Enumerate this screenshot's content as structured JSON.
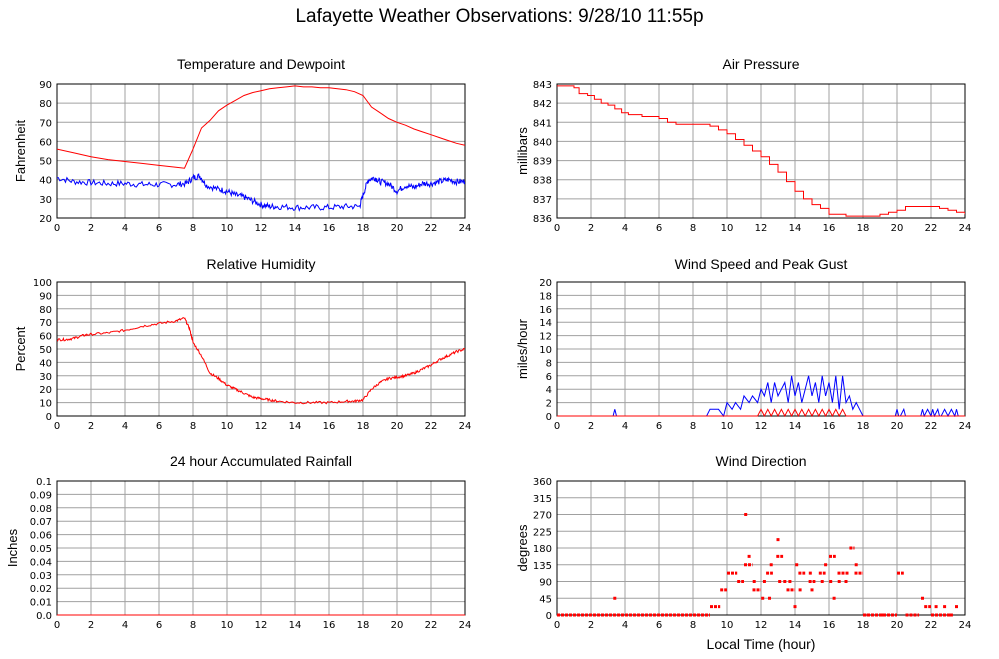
{
  "title": "Lafayette Weather Observations: 9/28/10 11:55p",
  "xlabel_bottom": "Local Time (hour)",
  "colors": {
    "series_red": "#ff0000",
    "series_blue": "#0000ff",
    "grid": "#a0a0a0"
  },
  "chart_data": [
    {
      "id": "temp",
      "type": "line",
      "title": "Temperature and Dewpoint",
      "ylabel": "Fahrenheit",
      "xlim": [
        0,
        24
      ],
      "ylim": [
        20,
        90
      ],
      "xticks": [
        0,
        2,
        4,
        6,
        8,
        10,
        12,
        14,
        16,
        18,
        20,
        22,
        24
      ],
      "yticks": [
        20,
        30,
        40,
        50,
        60,
        70,
        80,
        90
      ],
      "ytick_labels": [
        "20",
        "30",
        "40",
        "50",
        "60",
        "70",
        "80",
        "90"
      ],
      "series": [
        {
          "color": "#ff0000",
          "step": false,
          "x": [
            0,
            1,
            2,
            3,
            4,
            5,
            6,
            7,
            7.5,
            7.8,
            8,
            8.5,
            9,
            9.5,
            10,
            10.5,
            11,
            11.5,
            12,
            12.5,
            13,
            13.5,
            14,
            14.5,
            15,
            15.5,
            16,
            16.5,
            17,
            17.5,
            18,
            18.5,
            19,
            19.5,
            20,
            20.5,
            21,
            21.5,
            22,
            22.5,
            23,
            23.5,
            24
          ],
          "y": [
            56,
            54,
            52,
            50.5,
            49.5,
            48.5,
            47.5,
            46.5,
            46,
            52,
            56,
            67,
            71,
            76,
            79,
            81.5,
            84,
            85.5,
            86.5,
            87.5,
            88,
            88.5,
            89,
            88.5,
            88.5,
            88,
            88,
            87.5,
            87,
            86,
            84,
            78,
            75,
            72,
            70,
            68.5,
            66.5,
            65,
            63.5,
            62,
            60.5,
            59,
            58
          ],
          "noise": 0
        },
        {
          "color": "#0000ff",
          "step": false,
          "x": [
            0,
            1,
            2,
            3,
            4,
            5,
            6,
            7,
            7.6,
            8,
            8.4,
            8.8,
            9.5,
            10,
            10.5,
            11,
            11.5,
            12,
            12.5,
            13,
            14,
            15,
            16,
            17,
            17.8,
            18,
            18.3,
            18.7,
            19,
            19.5,
            20,
            20.5,
            21,
            21.5,
            22,
            22.5,
            23,
            23.5,
            24
          ],
          "y": [
            41,
            39,
            38.5,
            38,
            38,
            37.5,
            37.5,
            37.5,
            38,
            41,
            42,
            37,
            35,
            34,
            32,
            31,
            29,
            27,
            26,
            26,
            25.5,
            25.5,
            25.5,
            26,
            26,
            32,
            40,
            41,
            39,
            38,
            34,
            37,
            36,
            38,
            38,
            39,
            40,
            39,
            39
          ],
          "noise": 1.6
        }
      ]
    },
    {
      "id": "pressure",
      "type": "line",
      "title": "Air Pressure",
      "ylabel": "millibars",
      "xlim": [
        0,
        24
      ],
      "ylim": [
        836,
        843
      ],
      "xticks": [
        0,
        2,
        4,
        6,
        8,
        10,
        12,
        14,
        16,
        18,
        20,
        22,
        24
      ],
      "yticks": [
        836,
        837,
        838,
        839,
        840,
        841,
        842,
        843
      ],
      "ytick_labels": [
        "836",
        "837",
        "838",
        "839",
        "840",
        "841",
        "842",
        "843"
      ],
      "series": [
        {
          "color": "#ff0000",
          "step": true,
          "x": [
            0,
            0.5,
            1,
            1.3,
            1.8,
            2.2,
            2.6,
            3,
            3.4,
            3.8,
            4.2,
            5,
            6,
            6.5,
            7,
            8,
            9,
            9.5,
            10,
            10.5,
            11,
            11.5,
            12,
            12.5,
            13,
            13.5,
            14,
            14.5,
            15,
            15.5,
            16,
            17,
            18,
            18.5,
            19,
            19.5,
            20,
            20.5,
            21,
            22,
            22.5,
            23,
            23.5,
            24
          ],
          "y": [
            842.9,
            842.9,
            842.8,
            842.5,
            842.4,
            842.2,
            842.0,
            841.9,
            841.7,
            841.5,
            841.4,
            841.3,
            841.2,
            841.0,
            840.9,
            840.9,
            840.8,
            840.6,
            840.4,
            840.1,
            839.8,
            839.5,
            839.2,
            838.8,
            838.4,
            837.9,
            837.4,
            837.0,
            836.7,
            836.5,
            836.2,
            836.1,
            836.1,
            836.1,
            836.2,
            836.3,
            836.4,
            836.6,
            836.6,
            836.6,
            836.5,
            836.4,
            836.3,
            836.2
          ],
          "noise": 0
        }
      ]
    },
    {
      "id": "humidity",
      "type": "line",
      "title": "Relative Humidity",
      "ylabel": "Percent",
      "xlim": [
        0,
        24
      ],
      "ylim": [
        0,
        100
      ],
      "xticks": [
        0,
        2,
        4,
        6,
        8,
        10,
        12,
        14,
        16,
        18,
        20,
        22,
        24
      ],
      "yticks": [
        0,
        10,
        20,
        30,
        40,
        50,
        60,
        70,
        80,
        90,
        100
      ],
      "ytick_labels": [
        "0",
        "10",
        "20",
        "30",
        "40",
        "50",
        "60",
        "70",
        "80",
        "90",
        "100"
      ],
      "series": [
        {
          "color": "#ff0000",
          "step": false,
          "x": [
            0,
            0.5,
            1,
            1.5,
            2,
            3,
            4,
            5,
            6,
            7,
            7.5,
            7.8,
            8,
            8.5,
            9,
            9.5,
            10,
            10.5,
            11,
            11.5,
            12,
            12.5,
            13,
            14,
            15,
            16,
            17,
            17.5,
            18,
            18.5,
            19,
            19.5,
            20,
            20.5,
            21,
            21.5,
            22,
            22.5,
            23,
            23.5,
            24
          ],
          "y": [
            57,
            57,
            58,
            60,
            61,
            62,
            64,
            67,
            69,
            71,
            73,
            65,
            55,
            45,
            32,
            28,
            23,
            20,
            17,
            14,
            13,
            12,
            11,
            10,
            10,
            10,
            11,
            11,
            12,
            20,
            25,
            28,
            29,
            30,
            32,
            35,
            38,
            42,
            45,
            48,
            50
          ],
          "noise": 0.9
        }
      ]
    },
    {
      "id": "wind",
      "type": "line",
      "title": "Wind Speed and Peak Gust",
      "ylabel": "miles/hour",
      "xlim": [
        0,
        24
      ],
      "ylim": [
        0,
        20
      ],
      "xticks": [
        0,
        2,
        4,
        6,
        8,
        10,
        12,
        14,
        16,
        18,
        20,
        22,
        24
      ],
      "yticks": [
        0,
        2,
        4,
        6,
        8,
        10,
        12,
        14,
        16,
        18,
        20
      ],
      "ytick_labels": [
        "0",
        "2",
        "4",
        "6",
        "8",
        "10",
        "12",
        "14",
        "16",
        "18",
        "20"
      ],
      "series": [
        {
          "color": "#0000ff",
          "step": false,
          "x": [
            0,
            3.3,
            3.4,
            3.5,
            3.6,
            8.8,
            9,
            9.2,
            9.5,
            9.8,
            10,
            10.3,
            10.5,
            10.8,
            11,
            11.3,
            11.5,
            11.8,
            12,
            12.2,
            12.4,
            12.6,
            12.8,
            13,
            13.2,
            13.4,
            13.6,
            13.8,
            14,
            14.2,
            14.4,
            14.6,
            14.8,
            15,
            15.2,
            15.4,
            15.6,
            15.8,
            16,
            16.2,
            16.4,
            16.6,
            16.8,
            17,
            17.2,
            17.4,
            17.6,
            17.8,
            18,
            19.9,
            20,
            20.1,
            20.2,
            20.4,
            20.5,
            20.6,
            21.4,
            21.5,
            21.6,
            21.8,
            22,
            22.1,
            22.2,
            22.4,
            22.5,
            22.6,
            22.8,
            23,
            23.2,
            23.4,
            23.5,
            23.6,
            24
          ],
          "y": [
            0,
            0,
            1,
            0,
            0,
            0,
            1,
            1,
            1,
            0,
            2,
            1,
            2,
            1,
            3,
            2,
            3,
            2,
            4,
            3,
            5,
            2,
            5,
            3,
            4,
            5,
            2,
            6,
            3,
            5,
            2,
            4,
            6,
            3,
            5,
            2,
            6,
            3,
            5,
            2,
            6,
            1,
            6,
            2,
            3,
            1,
            2,
            1,
            0,
            0,
            1,
            0,
            0,
            1,
            0,
            0,
            0,
            1,
            0,
            1,
            0,
            1,
            0,
            1,
            0,
            0,
            1,
            0,
            1,
            0,
            1,
            0,
            0
          ],
          "noise": 0
        },
        {
          "color": "#ff0000",
          "step": false,
          "x": [
            0,
            11.8,
            12,
            12.2,
            12.4,
            12.6,
            12.8,
            13,
            13.2,
            13.4,
            13.6,
            13.8,
            14,
            14.2,
            14.4,
            14.6,
            14.8,
            15,
            15.2,
            15.4,
            15.6,
            15.8,
            16,
            16.2,
            16.4,
            16.6,
            16.8,
            17,
            24
          ],
          "y": [
            0,
            0,
            1,
            0,
            1,
            0,
            1,
            0,
            1,
            0,
            1,
            0,
            1,
            0,
            1,
            0,
            1,
            0,
            1,
            0,
            1,
            0,
            1,
            0,
            1,
            0,
            1,
            0,
            0
          ],
          "noise": 0
        }
      ]
    },
    {
      "id": "rain",
      "type": "line",
      "title": "24 hour Accumulated Rainfall",
      "ylabel": "Inches",
      "xlim": [
        0,
        24
      ],
      "ylim": [
        0,
        0.1
      ],
      "xticks": [
        0,
        2,
        4,
        6,
        8,
        10,
        12,
        14,
        16,
        18,
        20,
        22,
        24
      ],
      "yticks": [
        0,
        0.01,
        0.02,
        0.03,
        0.04,
        0.05,
        0.06,
        0.07,
        0.08,
        0.09,
        0.1
      ],
      "ytick_labels": [
        "0.0",
        "0.01",
        "0.02",
        "0.03",
        "0.04",
        "0.05",
        "0.06",
        "0.07",
        "0.08",
        "0.09",
        "0.1"
      ],
      "series": [
        {
          "color": "#ff0000",
          "step": false,
          "x": [
            0,
            24
          ],
          "y": [
            0,
            0
          ],
          "noise": 0
        }
      ]
    },
    {
      "id": "direction",
      "type": "scatter",
      "title": "Wind Direction",
      "ylabel": "degrees",
      "xlim": [
        0,
        24
      ],
      "ylim": [
        0,
        360
      ],
      "xticks": [
        0,
        2,
        4,
        6,
        8,
        10,
        12,
        14,
        16,
        18,
        20,
        22,
        24
      ],
      "yticks": [
        0,
        45,
        90,
        135,
        180,
        225,
        270,
        315,
        360
      ],
      "ytick_labels": [
        "0",
        "45",
        "90",
        "135",
        "180",
        "225",
        "270",
        "315",
        "360"
      ],
      "segments": [
        {
          "x0": 0,
          "x1": 9.0,
          "y": 0
        },
        {
          "x0": 9.0,
          "x1": 9.6,
          "y": 22.5
        },
        {
          "x0": 9.6,
          "x1": 10.0,
          "y": 67.5
        },
        {
          "x0": 10.0,
          "x1": 10.6,
          "y": 112.5
        },
        {
          "x0": 10.6,
          "x1": 11.0,
          "y": 90
        },
        {
          "x0": 11.0,
          "x1": 11.5,
          "y": 135
        },
        {
          "x0": 11.5,
          "x1": 12.0,
          "y": 67.5
        },
        {
          "x0": 12.3,
          "x1": 12.7,
          "y": 112.5
        },
        {
          "x0": 12.9,
          "x1": 13.3,
          "y": 157.5
        },
        {
          "x0": 13.5,
          "x1": 14.0,
          "y": 67.5
        },
        {
          "x0": 14.2,
          "x1": 14.6,
          "y": 112.5
        },
        {
          "x0": 14.8,
          "x1": 15.2,
          "y": 90
        },
        {
          "x0": 15.4,
          "x1": 15.8,
          "y": 112.5
        },
        {
          "x0": 16.0,
          "x1": 16.4,
          "y": 157.5
        },
        {
          "x0": 16.5,
          "x1": 17.2,
          "y": 112.5
        },
        {
          "x0": 17.2,
          "x1": 17.5,
          "y": 180
        },
        {
          "x0": 17.5,
          "x1": 18.0,
          "y": 112.5
        },
        {
          "x0": 18.0,
          "x1": 20.0,
          "y": 0
        },
        {
          "x0": 20.0,
          "x1": 20.4,
          "y": 112.5
        },
        {
          "x0": 20.5,
          "x1": 21.3,
          "y": 0
        },
        {
          "x0": 21.6,
          "x1": 22.0,
          "y": 22.5
        },
        {
          "x0": 22.0,
          "x1": 23.2,
          "y": 0
        }
      ],
      "points": [
        {
          "x": 3.4,
          "y": 45
        },
        {
          "x": 11.1,
          "y": 270
        },
        {
          "x": 11.3,
          "y": 157.5
        },
        {
          "x": 11.6,
          "y": 90
        },
        {
          "x": 12.1,
          "y": 45
        },
        {
          "x": 12.2,
          "y": 90
        },
        {
          "x": 12.5,
          "y": 45
        },
        {
          "x": 12.6,
          "y": 135
        },
        {
          "x": 13.0,
          "y": 202.5
        },
        {
          "x": 13.1,
          "y": 90
        },
        {
          "x": 13.4,
          "y": 90
        },
        {
          "x": 13.7,
          "y": 90
        },
        {
          "x": 14.0,
          "y": 22.5
        },
        {
          "x": 14.1,
          "y": 135
        },
        {
          "x": 14.3,
          "y": 67.5
        },
        {
          "x": 14.9,
          "y": 112.5
        },
        {
          "x": 15.0,
          "y": 67.5
        },
        {
          "x": 15.6,
          "y": 90
        },
        {
          "x": 15.8,
          "y": 135
        },
        {
          "x": 16.1,
          "y": 90
        },
        {
          "x": 16.3,
          "y": 45
        },
        {
          "x": 16.6,
          "y": 90
        },
        {
          "x": 17.0,
          "y": 90
        },
        {
          "x": 17.6,
          "y": 135
        },
        {
          "x": 18.3,
          "y": 0
        },
        {
          "x": 19.2,
          "y": 0
        },
        {
          "x": 21.5,
          "y": 45
        },
        {
          "x": 22.3,
          "y": 22.5
        },
        {
          "x": 22.8,
          "y": 22.5
        },
        {
          "x": 23.5,
          "y": 22.5
        },
        {
          "x": 23.2,
          "y": 0
        }
      ]
    }
  ]
}
